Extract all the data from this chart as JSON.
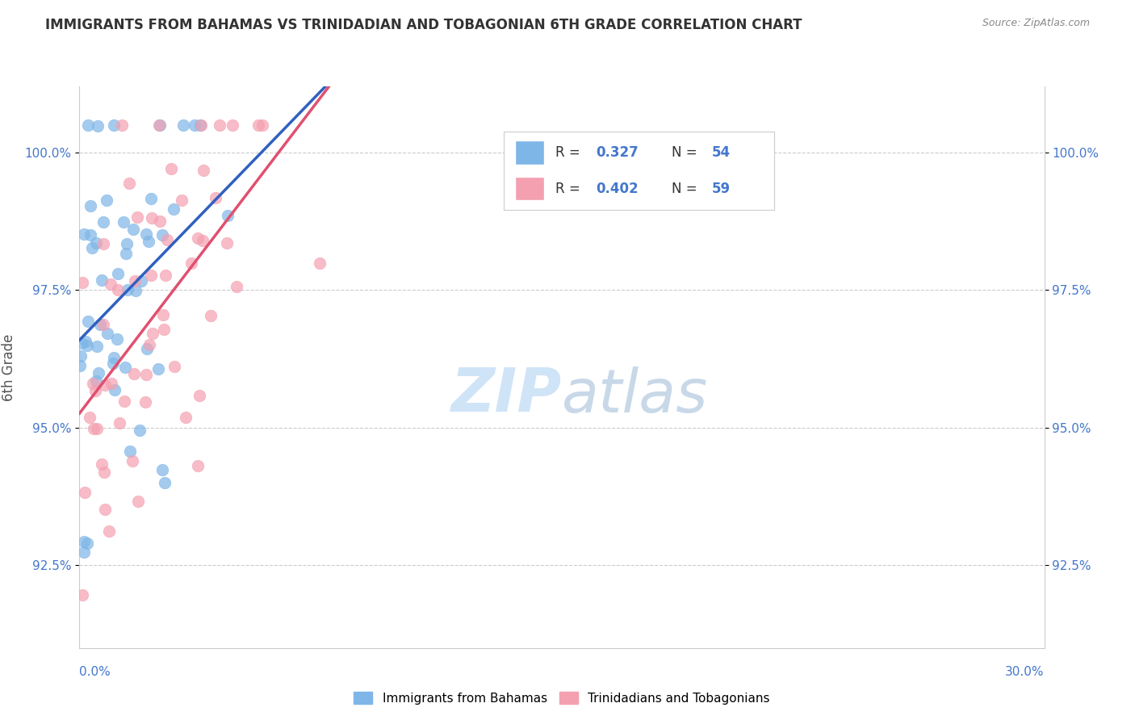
{
  "title": "IMMIGRANTS FROM BAHAMAS VS TRINIDADIAN AND TOBAGONIAN 6TH GRADE CORRELATION CHART",
  "source": "Source: ZipAtlas.com",
  "xlabel_bottom_left": "0.0%",
  "xlabel_bottom_right": "30.0%",
  "ylabel": "6th Grade",
  "xmin": 0.0,
  "xmax": 30.0,
  "ymin": 91.0,
  "ymax": 101.2,
  "yticks": [
    92.5,
    95.0,
    97.5,
    100.0
  ],
  "ytick_labels": [
    "92.5%",
    "95.0%",
    "97.5%",
    "100.0%"
  ],
  "blue_R": 0.327,
  "blue_N": 54,
  "pink_R": 0.402,
  "pink_N": 59,
  "blue_color": "#7EB6E8",
  "pink_color": "#F4A0B0",
  "blue_line_color": "#3060C0",
  "pink_line_color": "#E05070",
  "legend_R_color": "#4477CC",
  "watermark_color": "#D0E4F7",
  "background_color": "#FFFFFF"
}
